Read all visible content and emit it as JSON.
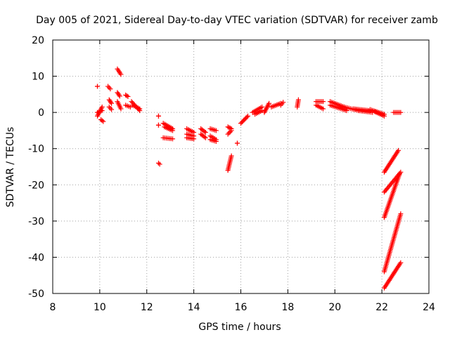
{
  "chart_data": {
    "type": "scatter",
    "title": "Day 005 of 2021, Sidereal Day-to-day VTEC variation (SDTVAR) for receiver zamb",
    "xlabel": "GPS time / hours",
    "ylabel": "SDTVAR / TECUs",
    "xlim": [
      8,
      24
    ],
    "ylim": [
      -50,
      20
    ],
    "x_ticks": [
      8,
      10,
      12,
      14,
      16,
      18,
      20,
      22,
      24
    ],
    "y_ticks": [
      -50,
      -40,
      -30,
      -20,
      -10,
      0,
      10,
      20
    ],
    "x_tick_labels": [
      "8",
      "10",
      "12",
      "14",
      "16",
      "18",
      "20",
      "22",
      "24"
    ],
    "y_tick_labels": [
      "-50",
      "-40",
      "-30",
      "-20",
      "-10",
      "0",
      "10",
      "20"
    ],
    "grid": true,
    "marker": "+",
    "marker_color": "#ff0000",
    "series": [
      {
        "name": "SDTVAR",
        "segments": [
          {
            "x": [
              9.9,
              10.1
            ],
            "y": [
              0.0,
              0.5
            ]
          },
          {
            "x": [
              9.9,
              10.1
            ],
            "y": [
              -1.0,
              1.5
            ]
          },
          {
            "x": [
              10.05,
              10.15
            ],
            "y": [
              -2.0,
              -2.5
            ]
          },
          {
            "x": [
              9.9,
              9.9
            ],
            "y": [
              7.2,
              7.2
            ]
          },
          {
            "x": [
              10.35,
              10.45
            ],
            "y": [
              7.2,
              6.5
            ]
          },
          {
            "x": [
              10.4,
              10.5
            ],
            "y": [
              3.5,
              2.5
            ]
          },
          {
            "x": [
              10.4,
              10.5
            ],
            "y": [
              1.5,
              0.8
            ]
          },
          {
            "x": [
              10.75,
              10.9
            ],
            "y": [
              12.0,
              10.5
            ]
          },
          {
            "x": [
              10.75,
              10.85
            ],
            "y": [
              5.5,
              4.5
            ]
          },
          {
            "x": [
              10.75,
              10.9
            ],
            "y": [
              3.0,
              1.0
            ]
          },
          {
            "x": [
              11.1,
              11.2
            ],
            "y": [
              4.8,
              4.4
            ]
          },
          {
            "x": [
              11.1,
              11.3
            ],
            "y": [
              2.0,
              1.5
            ]
          },
          {
            "x": [
              11.35,
              11.7
            ],
            "y": [
              3.0,
              0.5
            ]
          },
          {
            "x": [
              11.4,
              11.7
            ],
            "y": [
              2.0,
              1.0
            ]
          },
          {
            "x": [
              12.5,
              12.5
            ],
            "y": [
              -1.0,
              -1.0
            ]
          },
          {
            "x": [
              12.5,
              12.5
            ],
            "y": [
              -3.5,
              -3.5
            ]
          },
          {
            "x": [
              12.5,
              12.55
            ],
            "y": [
              -14.0,
              -14.3
            ]
          },
          {
            "x": [
              12.7,
              13.1
            ],
            "y": [
              -3.0,
              -4.5
            ]
          },
          {
            "x": [
              12.75,
              13.1
            ],
            "y": [
              -4.0,
              -5.0
            ]
          },
          {
            "x": [
              12.7,
              13.1
            ],
            "y": [
              -7.0,
              -7.3
            ]
          },
          {
            "x": [
              13.7,
              14.0
            ],
            "y": [
              -4.5,
              -5.5
            ]
          },
          {
            "x": [
              13.7,
              14.0
            ],
            "y": [
              -6.0,
              -6.5
            ]
          },
          {
            "x": [
              13.7,
              14.0
            ],
            "y": [
              -7.0,
              -7.3
            ]
          },
          {
            "x": [
              14.3,
              14.5
            ],
            "y": [
              -4.5,
              -5.5
            ]
          },
          {
            "x": [
              14.3,
              14.5
            ],
            "y": [
              -6.0,
              -7.0
            ]
          },
          {
            "x": [
              14.7,
              14.95
            ],
            "y": [
              -4.5,
              -5.0
            ]
          },
          {
            "x": [
              14.7,
              14.95
            ],
            "y": [
              -6.5,
              -7.5
            ]
          },
          {
            "x": [
              14.7,
              14.95
            ],
            "y": [
              -7.5,
              -8.0
            ]
          },
          {
            "x": [
              15.45,
              15.6
            ],
            "y": [
              -4.0,
              -4.5
            ]
          },
          {
            "x": [
              15.45,
              15.6
            ],
            "y": [
              -6.0,
              -5.0
            ]
          },
          {
            "x": [
              15.45,
              15.6
            ],
            "y": [
              -16.0,
              -12.0
            ]
          },
          {
            "x": [
              15.85,
              15.85
            ],
            "y": [
              -8.5,
              -8.5
            ]
          },
          {
            "x": [
              16.0,
              16.3
            ],
            "y": [
              -3.0,
              -1.0
            ]
          },
          {
            "x": [
              16.5,
              16.9
            ],
            "y": [
              0.0,
              1.5
            ]
          },
          {
            "x": [
              16.6,
              16.9
            ],
            "y": [
              -0.5,
              0.5
            ]
          },
          {
            "x": [
              17.0,
              17.2
            ],
            "y": [
              0.0,
              2.5
            ]
          },
          {
            "x": [
              17.3,
              17.7
            ],
            "y": [
              1.5,
              2.5
            ]
          },
          {
            "x": [
              17.7,
              17.8
            ],
            "y": [
              2.0,
              2.8
            ]
          },
          {
            "x": [
              18.4,
              18.45
            ],
            "y": [
              1.5,
              3.5
            ]
          },
          {
            "x": [
              19.2,
              19.5
            ],
            "y": [
              3.0,
              3.0
            ]
          },
          {
            "x": [
              19.2,
              19.5
            ],
            "y": [
              2.0,
              1.0
            ]
          },
          {
            "x": [
              19.8,
              20.4
            ],
            "y": [
              3.0,
              1.5
            ]
          },
          {
            "x": [
              19.8,
              20.5
            ],
            "y": [
              2.0,
              0.5
            ]
          },
          {
            "x": [
              20.4,
              21.0
            ],
            "y": [
              1.5,
              0.5
            ]
          },
          {
            "x": [
              20.8,
              21.5
            ],
            "y": [
              1.0,
              0.5
            ]
          },
          {
            "x": [
              21.0,
              21.6
            ],
            "y": [
              0.5,
              0.0
            ]
          },
          {
            "x": [
              21.5,
              22.1
            ],
            "y": [
              0.8,
              -0.5
            ]
          },
          {
            "x": [
              21.7,
              22.1
            ],
            "y": [
              0.2,
              -1.0
            ]
          },
          {
            "x": [
              22.5,
              22.8
            ],
            "y": [
              0.0,
              0.0
            ]
          },
          {
            "x": [
              22.1,
              22.7
            ],
            "y": [
              -16.5,
              -10.5
            ]
          },
          {
            "x": [
              22.1,
              22.8
            ],
            "y": [
              -22.0,
              -16.5
            ]
          },
          {
            "x": [
              22.1,
              22.75
            ],
            "y": [
              -29.0,
              -17.0
            ]
          },
          {
            "x": [
              22.1,
              22.8
            ],
            "y": [
              -44.0,
              -28.0
            ]
          },
          {
            "x": [
              22.1,
              22.8
            ],
            "y": [
              -48.5,
              -41.5
            ]
          }
        ]
      }
    ]
  }
}
